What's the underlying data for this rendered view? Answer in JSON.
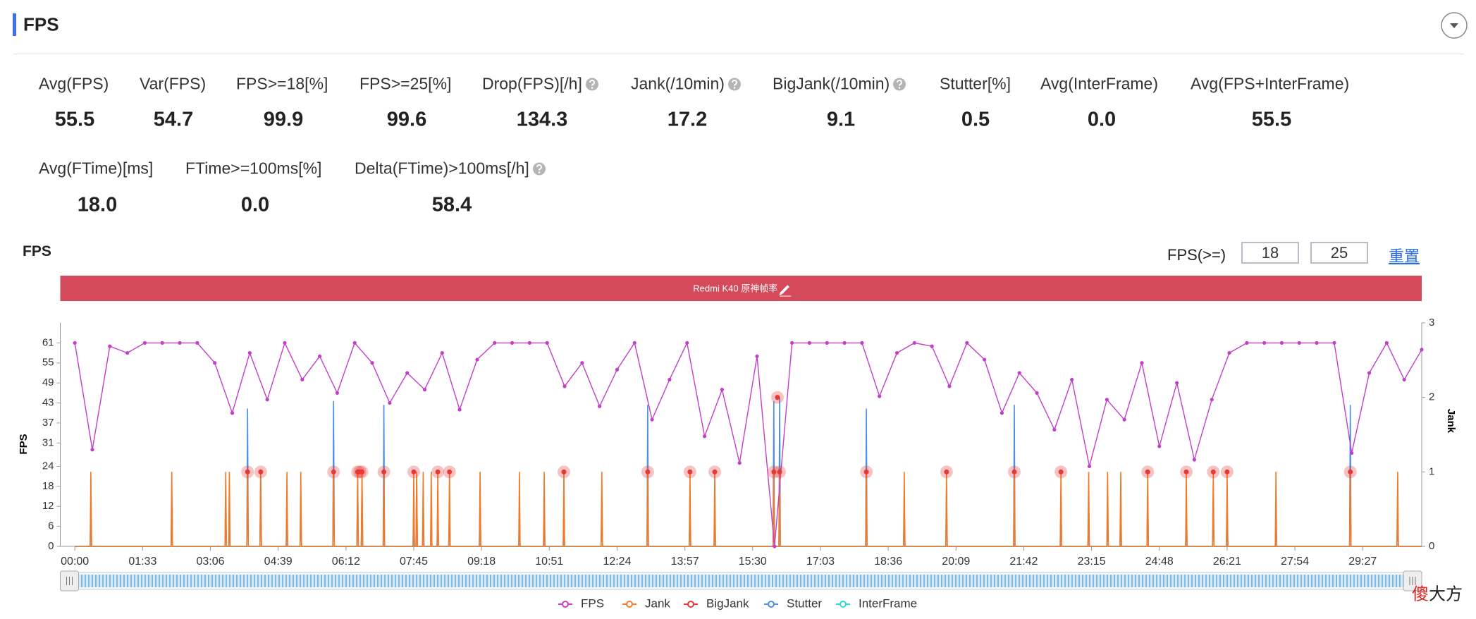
{
  "header": {
    "title": "FPS"
  },
  "metrics": [
    {
      "label": "Avg(FPS)",
      "value": "55.5"
    },
    {
      "label": "Var(FPS)",
      "value": "54.7"
    },
    {
      "label": "FPS>=18[%]",
      "value": "99.9"
    },
    {
      "label": "FPS>=25[%]",
      "value": "99.6"
    },
    {
      "label": "Drop(FPS)[/h]",
      "value": "134.3",
      "help": true
    },
    {
      "label": "Jank(/10min)",
      "value": "17.2",
      "help": true
    },
    {
      "label": "BigJank(/10min)",
      "value": "9.1",
      "help": true
    },
    {
      "label": "Stutter[%]",
      "value": "0.5"
    },
    {
      "label": "Avg(InterFrame)",
      "value": "0.0"
    },
    {
      "label": "Avg(FPS+InterFrame)",
      "value": "55.5"
    },
    {
      "label": "Avg(FTime)[ms]",
      "value": "18.0"
    },
    {
      "label": "FTime>=100ms[%]",
      "value": "0.0"
    },
    {
      "label": "Delta(FTime)>100ms[/h]",
      "value": "58.4",
      "help": true
    }
  ],
  "chart_data": {
    "type": "line",
    "title": "FPS",
    "threshold_label": "FPS(>=)",
    "thresholds": [
      18,
      25
    ],
    "reset": "重置",
    "banner": "Redmi K40 原神帧率",
    "ylabel": "FPS",
    "y2label": "Jank",
    "xlim": [
      -20,
      1848
    ],
    "xticks": [
      {
        "value": 0,
        "label": "00:00"
      },
      {
        "value": 93,
        "label": "01:33"
      },
      {
        "value": 186,
        "label": "03:06"
      },
      {
        "value": 279,
        "label": "04:39"
      },
      {
        "value": 372,
        "label": "06:12"
      },
      {
        "value": 465,
        "label": "07:45"
      },
      {
        "value": 558,
        "label": "09:18"
      },
      {
        "value": 651,
        "label": "10:51"
      },
      {
        "value": 744,
        "label": "12:24"
      },
      {
        "value": 837,
        "label": "13:57"
      },
      {
        "value": 930,
        "label": "15:30"
      },
      {
        "value": 1023,
        "label": "17:03"
      },
      {
        "value": 1116,
        "label": "18:36"
      },
      {
        "value": 1209,
        "label": "20:09"
      },
      {
        "value": 1302,
        "label": "21:42"
      },
      {
        "value": 1395,
        "label": "23:15"
      },
      {
        "value": 1488,
        "label": "24:48"
      },
      {
        "value": 1581,
        "label": "26:21"
      },
      {
        "value": 1674,
        "label": "27:54"
      },
      {
        "value": 1767,
        "label": "29:27"
      }
    ],
    "ylim": [
      0,
      67
    ],
    "yticks": [
      0,
      6,
      12,
      18,
      24,
      31,
      37,
      43,
      49,
      55,
      61
    ],
    "y2lim": [
      0,
      3
    ],
    "y2ticks": [
      0,
      1,
      2,
      3
    ],
    "series": [
      {
        "name": "FPS",
        "color": "#c23fc8",
        "axis": "y",
        "x": [
          0,
          24,
          48,
          72,
          96,
          120,
          144,
          168,
          192,
          216,
          240,
          264,
          288,
          312,
          336,
          360,
          384,
          408,
          432,
          456,
          480,
          504,
          528,
          552,
          576,
          600,
          624,
          648,
          672,
          696,
          720,
          744,
          768,
          792,
          816,
          840,
          864,
          888,
          912,
          936,
          960,
          984,
          1008,
          1032,
          1056,
          1080,
          1104,
          1128,
          1152,
          1176,
          1200,
          1224,
          1248,
          1272,
          1296,
          1320,
          1344,
          1368,
          1392,
          1416,
          1440,
          1464,
          1488,
          1512,
          1536,
          1560,
          1584,
          1608,
          1632,
          1656,
          1680,
          1704,
          1728,
          1752,
          1776,
          1800,
          1824,
          1848
        ],
        "values": [
          61,
          29,
          60,
          58,
          61,
          61,
          61,
          61,
          55,
          40,
          58,
          44,
          61,
          50,
          57,
          46,
          61,
          55,
          43,
          52,
          47,
          58,
          41,
          56,
          61,
          61,
          61,
          61,
          48,
          55,
          42,
          53,
          61,
          38,
          50,
          61,
          33,
          47,
          25,
          57,
          0,
          61,
          61,
          61,
          61,
          61,
          45,
          58,
          61,
          60,
          48,
          61,
          56,
          40,
          52,
          46,
          35,
          50,
          24,
          44,
          38,
          55,
          30,
          49,
          26,
          44,
          58,
          61,
          61,
          61,
          61,
          61,
          61,
          28,
          52,
          61,
          50,
          59
        ]
      },
      {
        "name": "Jank",
        "color": "#f07a28",
        "axis": "y2",
        "x": [
          0,
          21,
          22,
          23,
          132,
          133,
          134,
          206,
          207,
          208,
          211,
          212,
          213,
          236,
          237,
          238,
          254,
          255,
          256,
          290,
          291,
          292,
          309,
          310,
          311,
          354,
          355,
          356,
          387,
          388,
          389,
          393,
          394,
          395,
          423,
          424,
          425,
          464,
          465,
          466,
          468,
          469,
          470,
          477,
          478,
          479,
          488,
          489,
          490,
          497,
          498,
          499,
          513,
          514,
          515,
          555,
          556,
          557,
          609,
          610,
          611,
          643,
          644,
          645,
          670,
          671,
          672,
          722,
          723,
          724,
          785,
          786,
          787,
          843,
          844,
          845,
          877,
          878,
          879,
          958,
          959,
          960,
          966,
          967,
          968,
          1085,
          1086,
          1087,
          1137,
          1138,
          1139,
          1195,
          1196,
          1197,
          1288,
          1289,
          1290,
          1352,
          1353,
          1354,
          1390,
          1391,
          1392,
          1416,
          1417,
          1418,
          1434,
          1435,
          1436,
          1471,
          1472,
          1473,
          1524,
          1525,
          1526,
          1561,
          1562,
          1563,
          1580,
          1581,
          1582,
          1647,
          1648,
          1649,
          1749,
          1750,
          1751,
          1814,
          1815,
          1816,
          1848
        ],
        "values": [
          0,
          0,
          1,
          0,
          0,
          1,
          0,
          0,
          1,
          0,
          0,
          1,
          0,
          0,
          1,
          0,
          0,
          1,
          0,
          0,
          1,
          0,
          0,
          1,
          0,
          0,
          1,
          0,
          0,
          1,
          0,
          0,
          1,
          0,
          0,
          1,
          0,
          0,
          1,
          0,
          0,
          1,
          0,
          0,
          1,
          0,
          0,
          1,
          0,
          0,
          1,
          0,
          0,
          1,
          0,
          0,
          1,
          0,
          0,
          1,
          0,
          0,
          1,
          0,
          0,
          1,
          0,
          0,
          1,
          0,
          0,
          1,
          0,
          0,
          1,
          0,
          0,
          1,
          0,
          0,
          1,
          0,
          0,
          1,
          0,
          0,
          1,
          0,
          0,
          1,
          0,
          0,
          1,
          0,
          0,
          1,
          0,
          0,
          1,
          0,
          0,
          1,
          0,
          0,
          1,
          0,
          0,
          1,
          0,
          0,
          1,
          0,
          0,
          1,
          0,
          0,
          1,
          0,
          0,
          1,
          0,
          0,
          1,
          0,
          0,
          1,
          0,
          0,
          1,
          0,
          0
        ]
      },
      {
        "name": "BigJank",
        "color": "#e53935",
        "axis": "y2",
        "x": [
          237,
          255,
          355,
          388,
          391,
          394,
          424,
          465,
          498,
          514,
          671,
          786,
          844,
          878,
          959,
          964,
          967,
          1086,
          1196,
          1289,
          1353,
          1472,
          1525,
          1562,
          1581,
          1750
        ],
        "values": [
          1,
          1,
          1,
          1,
          1,
          1,
          1,
          1,
          1,
          1,
          1,
          1,
          1,
          1,
          1,
          2,
          1,
          1,
          1,
          1,
          1,
          1,
          1,
          1,
          1,
          1
        ]
      },
      {
        "name": "Stutter",
        "color": "#4d8fe0",
        "axis": "y2",
        "x": [
          0,
          21,
          22,
          23,
          132,
          133,
          134,
          206,
          207,
          208,
          211,
          212,
          213,
          236,
          237,
          238,
          254,
          255,
          256,
          290,
          291,
          292,
          309,
          310,
          311,
          354,
          355,
          356,
          387,
          388,
          389,
          393,
          394,
          395,
          423,
          424,
          425,
          464,
          465,
          466,
          468,
          469,
          470,
          477,
          478,
          479,
          488,
          489,
          490,
          497,
          498,
          499,
          513,
          514,
          515,
          555,
          556,
          557,
          609,
          610,
          611,
          643,
          644,
          645,
          670,
          671,
          672,
          722,
          723,
          724,
          785,
          786,
          787,
          843,
          844,
          845,
          877,
          878,
          879,
          958,
          959,
          960,
          966,
          967,
          968,
          1085,
          1086,
          1087,
          1137,
          1138,
          1139,
          1195,
          1196,
          1197,
          1288,
          1289,
          1290,
          1352,
          1353,
          1354,
          1390,
          1391,
          1392,
          1416,
          1417,
          1418,
          1434,
          1435,
          1436,
          1471,
          1472,
          1473,
          1524,
          1525,
          1526,
          1561,
          1562,
          1563,
          1580,
          1581,
          1582,
          1647,
          1648,
          1649,
          1749,
          1750,
          1751,
          1814,
          1815,
          1816,
          1848
        ],
        "values": [
          0,
          0,
          0.5,
          0,
          0,
          0.45,
          0,
          0,
          0.45,
          0,
          0,
          0.45,
          0,
          0,
          1.85,
          0,
          0,
          1,
          0,
          0,
          0.45,
          0,
          0,
          0.45,
          0,
          0,
          1.95,
          0,
          0,
          0.9,
          0,
          0,
          0.9,
          0,
          0,
          1.9,
          0,
          0,
          0.6,
          0,
          0,
          0.9,
          0,
          0,
          0.5,
          0,
          0,
          0.5,
          0,
          0,
          0.6,
          0,
          0,
          0.5,
          0,
          0,
          0.6,
          0,
          0,
          0.45,
          0,
          0,
          0.45,
          0,
          0,
          0.55,
          0,
          0,
          0.45,
          0,
          0,
          1.9,
          0,
          0,
          0.5,
          0,
          0,
          0.6,
          0,
          0,
          1.95,
          0,
          0,
          2,
          0,
          0,
          1.85,
          0,
          0,
          0.45,
          0,
          0,
          0.75,
          0,
          0,
          1.9,
          0,
          0,
          0.6,
          0,
          0,
          0.45,
          0,
          0,
          0.45,
          0,
          0,
          0.5,
          0,
          0,
          0.75,
          0,
          0,
          0.5,
          0,
          0,
          0.5,
          0,
          0,
          0.6,
          0,
          0,
          0.45,
          0,
          0,
          1.9,
          0,
          0,
          0.5,
          0,
          0
        ]
      },
      {
        "name": "InterFrame",
        "color": "#33d6d6",
        "axis": "y2",
        "x": [
          0,
          1848
        ],
        "values": [
          0,
          0
        ]
      }
    ]
  },
  "watermark": [
    "傻",
    "大方"
  ]
}
